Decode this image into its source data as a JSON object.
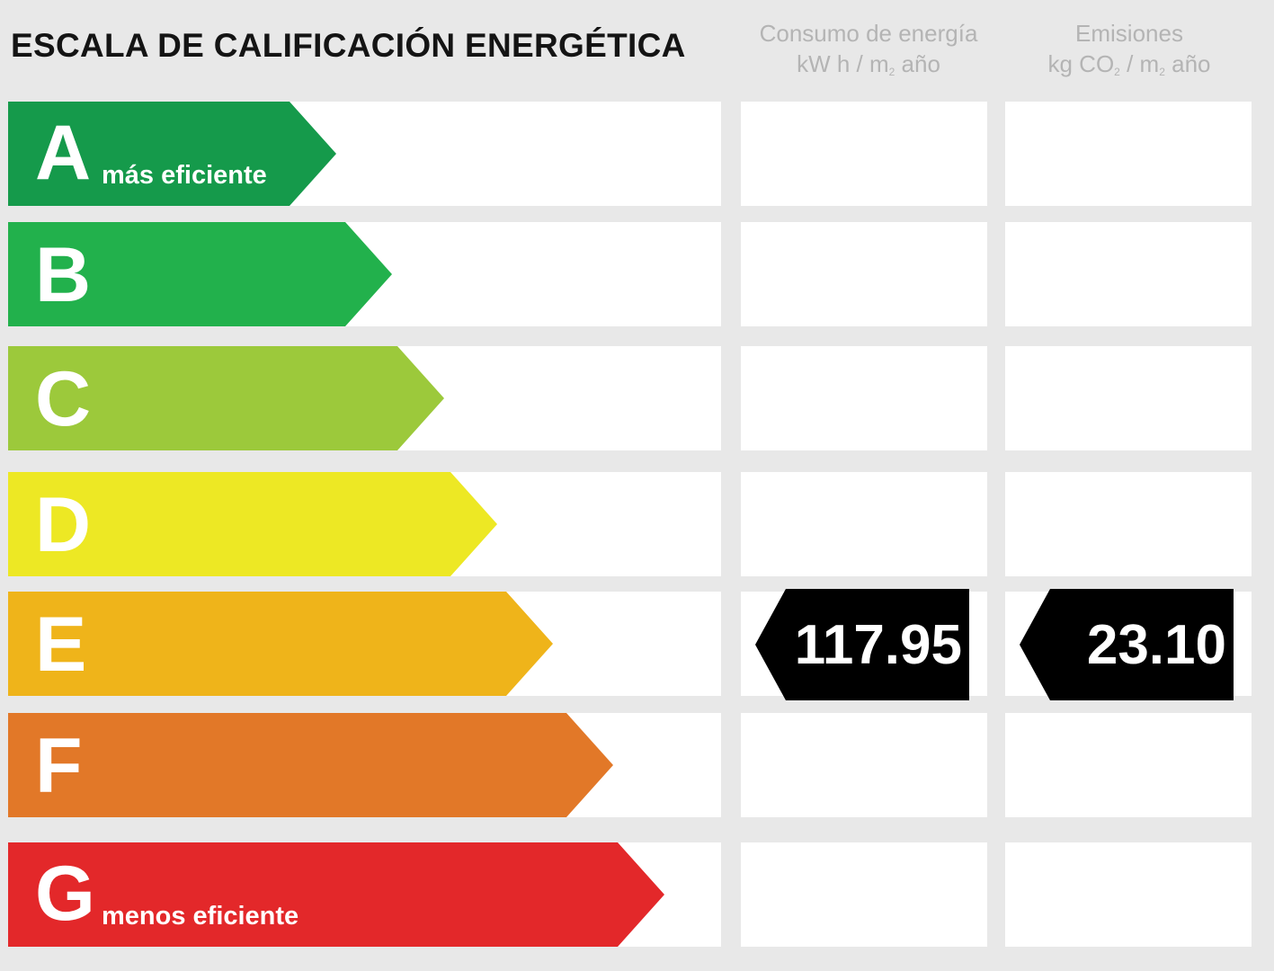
{
  "chart_data": {
    "type": "energy-rating-scale",
    "title": "ESCALA DE CALIFICACIÓN ENERGÉTICA",
    "columns": [
      {
        "line1": "Consumo de energía",
        "line2_pre": "kW h / m",
        "line2_sub": "2",
        "line2_post": " año"
      },
      {
        "line1": "Emisiones",
        "line2_pre": "kg CO",
        "line2_sub": "2",
        "line2_mid": " / m",
        "line2_sub2": "2",
        "line2_post": " año"
      }
    ],
    "classes": [
      {
        "letter": "A",
        "caption": "más eficiente",
        "color": "#159a4b"
      },
      {
        "letter": "B",
        "caption": "",
        "color": "#22b14c"
      },
      {
        "letter": "C",
        "caption": "",
        "color": "#9cc93b"
      },
      {
        "letter": "D",
        "caption": "",
        "color": "#ede824"
      },
      {
        "letter": "E",
        "caption": "",
        "color": "#efb41a"
      },
      {
        "letter": "F",
        "caption": "",
        "color": "#e27828"
      },
      {
        "letter": "G",
        "caption": "menos eficiente",
        "color": "#e3282a"
      }
    ],
    "rating": {
      "class": "E",
      "consumption": "117.95",
      "emissions": "23.10"
    }
  }
}
